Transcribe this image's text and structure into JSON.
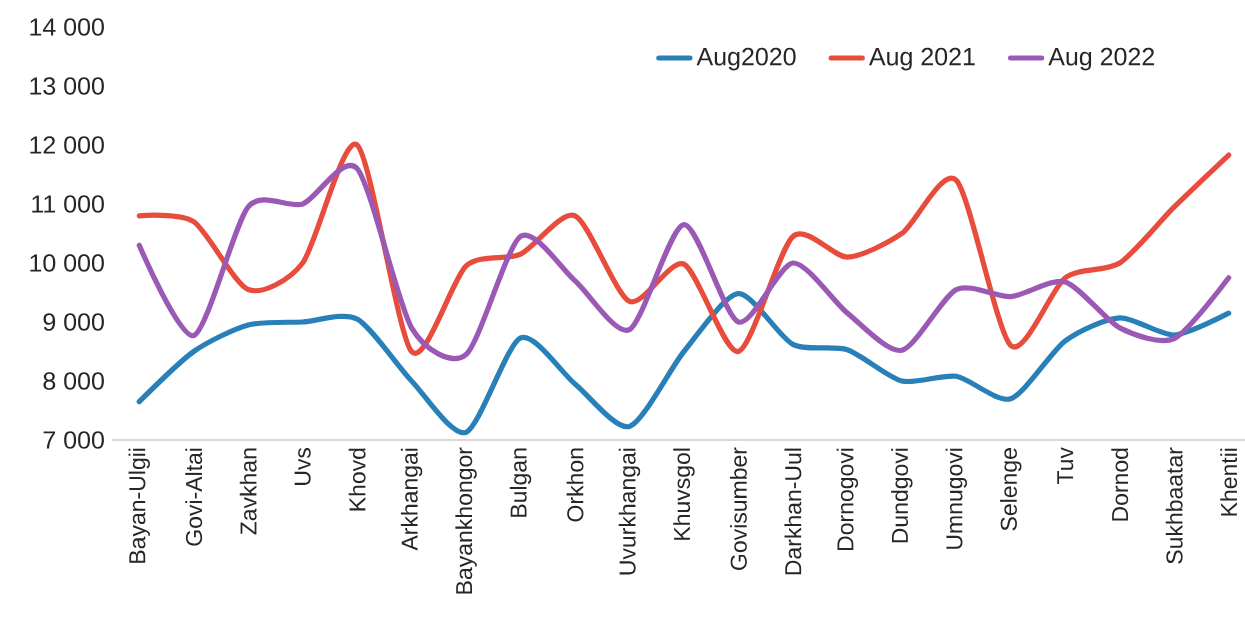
{
  "chart_data": {
    "type": "line",
    "categories": [
      "Bayan-Ulgii",
      "Govi-Altai",
      "Zavkhan",
      "Uvs",
      "Khovd",
      "Arkhangai",
      "Bayankhongor",
      "Bulgan",
      "Orkhon",
      "Uvurkhangai",
      "Khuvsgol",
      "Govisumber",
      "Darkhan-Uul",
      "Dornogovi",
      "Dundgovi",
      "Umnugovi",
      "Selenge",
      "Tuv",
      "Dornod",
      "Sukhbaatar",
      "Khentii"
    ],
    "series": [
      {
        "name": "Aug2020",
        "color": "#2980b9",
        "values": [
          7650,
          8500,
          8950,
          9000,
          9050,
          8000,
          7130,
          8730,
          7950,
          7230,
          8500,
          9480,
          8620,
          8530,
          8000,
          8080,
          7700,
          8680,
          9070,
          8780,
          9150
        ]
      },
      {
        "name": "Aug 2021",
        "color": "#e74c3c",
        "values": [
          10800,
          10700,
          9550,
          10000,
          12000,
          8500,
          9950,
          10150,
          10800,
          9350,
          9980,
          8500,
          10450,
          10100,
          10500,
          11400,
          8600,
          9750,
          10000,
          10950,
          11830
        ]
      },
      {
        "name": "Aug 2022",
        "color": "#9b59b6",
        "values": [
          10300,
          8770,
          10950,
          11000,
          11600,
          8900,
          8450,
          10450,
          9700,
          8870,
          10650,
          9000,
          10000,
          9150,
          8520,
          9550,
          9430,
          9680,
          8900,
          8720,
          9750
        ]
      }
    ],
    "ylim": [
      7000,
      14000
    ],
    "yticks": [
      {
        "value": 7000,
        "label": "7 000"
      },
      {
        "value": 8000,
        "label": "8 000"
      },
      {
        "value": 9000,
        "label": "9 000"
      },
      {
        "value": 10000,
        "label": "10 000"
      },
      {
        "value": 11000,
        "label": "11 000"
      },
      {
        "value": 12000,
        "label": "12 000"
      },
      {
        "value": 13000,
        "label": "13 000"
      },
      {
        "value": 14000,
        "label": "14 000"
      }
    ],
    "legend": "top right"
  }
}
